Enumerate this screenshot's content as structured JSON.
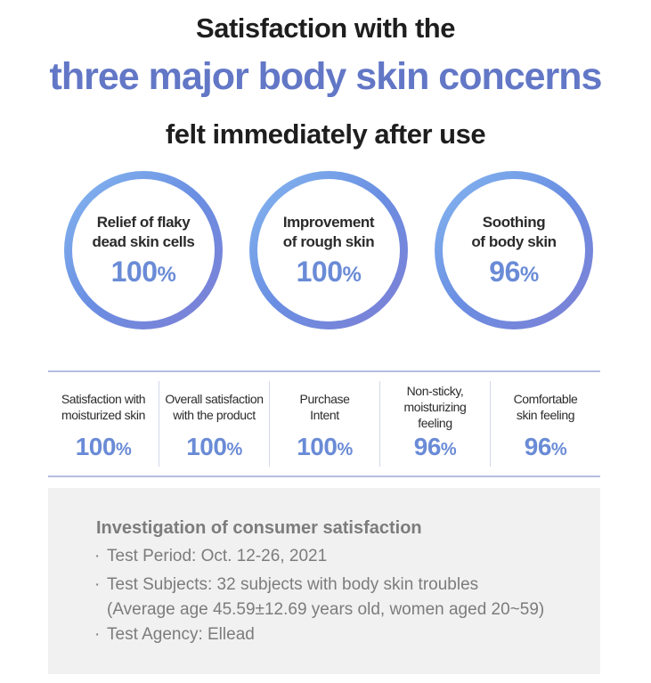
{
  "header": {
    "line1": "Satisfaction with the",
    "line2": "three major body skin concerns",
    "line3": "felt immediately after use"
  },
  "circles": [
    {
      "label_line1": "Relief of flaky",
      "label_line2": "dead skin cells",
      "value": "100",
      "unit": "%"
    },
    {
      "label_line1": "Improvement",
      "label_line2": "of rough skin",
      "value": "100",
      "unit": "%"
    },
    {
      "label_line1": "Soothing",
      "label_line2": "of body skin",
      "value": "96",
      "unit": "%"
    }
  ],
  "metrics": [
    {
      "label_line1": "Satisfaction with",
      "label_line2": "moisturized skin",
      "label_line3": "",
      "value": "100",
      "unit": "%"
    },
    {
      "label_line1": "Overall satisfaction",
      "label_line2": "with the product",
      "label_line3": "",
      "value": "100",
      "unit": "%"
    },
    {
      "label_line1": "Purchase",
      "label_line2": "Intent",
      "label_line3": "",
      "value": "100",
      "unit": "%"
    },
    {
      "label_line1": "Non-sticky,",
      "label_line2": "moisturizing",
      "label_line3": "feeling",
      "value": "96",
      "unit": "%"
    },
    {
      "label_line1": "Comfortable",
      "label_line2": "skin feeling",
      "label_line3": "",
      "value": "96",
      "unit": "%"
    }
  ],
  "investigation": {
    "title": "Investigation of consumer satisfaction",
    "bullet": "·",
    "test_period": "Test Period: Oct. 12-26, 2021",
    "test_subjects": "Test Subjects: 32 subjects with body skin troubles",
    "test_subjects_detail": "(Average age 45.59±12.69 years old, women aged 20~59)",
    "test_agency": "Test Agency: Ellead"
  },
  "colors": {
    "accent": "#6277c6",
    "value_blue": "#6a8bd6",
    "info_bg": "#f1f1f1"
  }
}
